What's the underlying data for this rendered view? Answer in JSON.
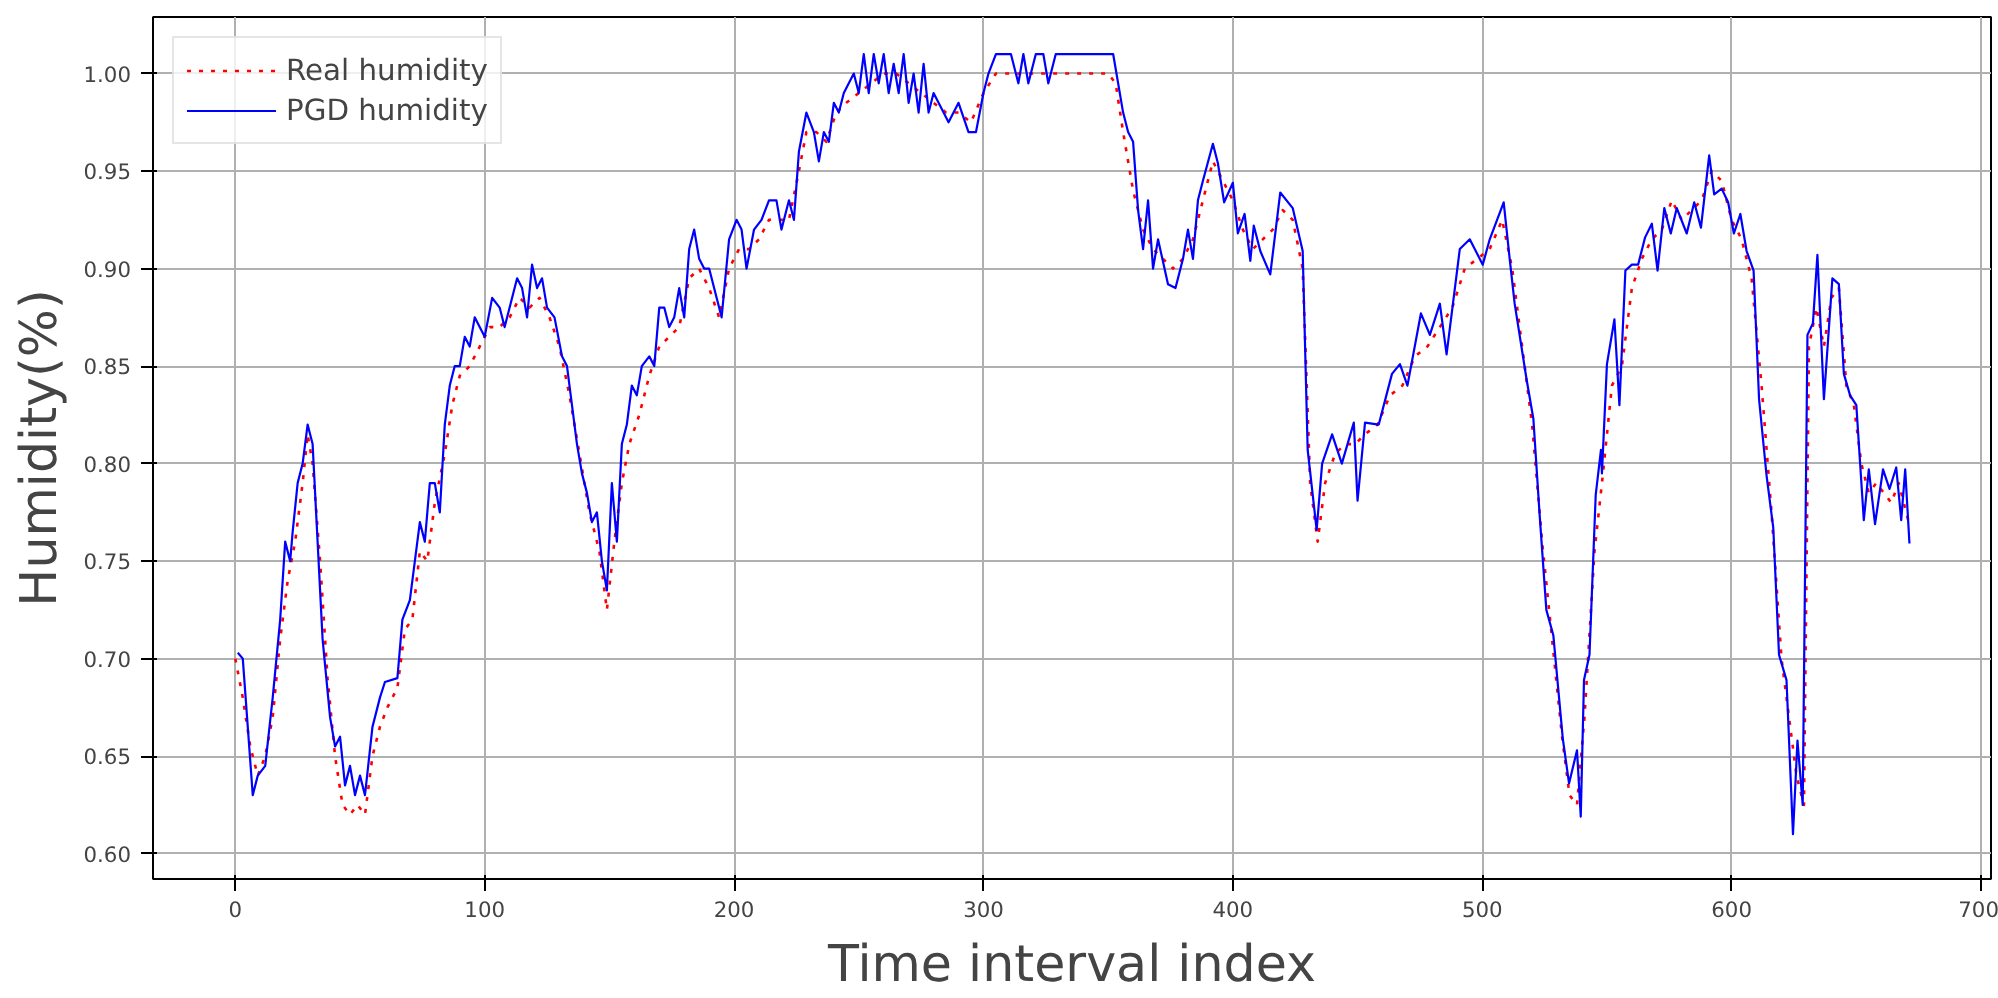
{
  "chart_data": {
    "type": "line",
    "xlabel": "Time interval index",
    "ylabel": "Humidity(%)",
    "xlim": [
      -33,
      704
    ],
    "ylim": [
      0.587,
      1.029
    ],
    "xticks": [
      0,
      100,
      200,
      300,
      400,
      500,
      600,
      700
    ],
    "yticks": [
      {
        "value": 0.6,
        "label": "0.60"
      },
      {
        "value": 0.65,
        "label": "0.65"
      },
      {
        "value": 0.7,
        "label": "0.70"
      },
      {
        "value": 0.75,
        "label": "0.75"
      },
      {
        "value": 0.8,
        "label": "0.80"
      },
      {
        "value": 0.85,
        "label": "0.85"
      },
      {
        "value": 0.9,
        "label": "0.90"
      },
      {
        "value": 0.95,
        "label": "0.95"
      },
      {
        "value": 1.0,
        "label": "1.00"
      }
    ],
    "grid": true,
    "legend": "top left",
    "series": [
      {
        "name": "Real humidity",
        "color": "#ff0000",
        "line_style": "dotted",
        "x": [
          0,
          3,
          6,
          9,
          12,
          15,
          18,
          21,
          24,
          27,
          29,
          31,
          34,
          37,
          40,
          43,
          46,
          49,
          52,
          55,
          58,
          61,
          65,
          68,
          71,
          74,
          77,
          80,
          84,
          87,
          90,
          94,
          98,
          102,
          106,
          110,
          114,
          118,
          122,
          126,
          130,
          134,
          138,
          142,
          146,
          149,
          152,
          155,
          158,
          162,
          166,
          170,
          174,
          178,
          182,
          186,
          190,
          194,
          198,
          202,
          206,
          210,
          214,
          218,
          222,
          226,
          229,
          233,
          237,
          241,
          245,
          250,
          255,
          260,
          265,
          270,
          275,
          280,
          285,
          290,
          295,
          300,
          305,
          310,
          320,
          330,
          340,
          350,
          353,
          356,
          360,
          364,
          368,
          372,
          376,
          380,
          384,
          388,
          392,
          396,
          400,
          404,
          408,
          412,
          416,
          420,
          424,
          428,
          431,
          434,
          437,
          441,
          445,
          449,
          453,
          458,
          463,
          468,
          473,
          478,
          483,
          488,
          493,
          498,
          503,
          508,
          512,
          516,
          520,
          524,
          528,
          532,
          535,
          538,
          541,
          545,
          548,
          552,
          556,
          560,
          564,
          568,
          572,
          576,
          580,
          584,
          588,
          592,
          596,
          600,
          604,
          608,
          612,
          616,
          620,
          623,
          626,
          629,
          631,
          634,
          637,
          640,
          643,
          646,
          649,
          652,
          655,
          658,
          661,
          664,
          667,
          671
        ],
        "values": [
          0.7,
          0.68,
          0.655,
          0.64,
          0.65,
          0.67,
          0.71,
          0.74,
          0.76,
          0.79,
          0.815,
          0.8,
          0.75,
          0.69,
          0.65,
          0.625,
          0.62,
          0.625,
          0.62,
          0.65,
          0.665,
          0.675,
          0.685,
          0.715,
          0.72,
          0.755,
          0.75,
          0.78,
          0.805,
          0.83,
          0.845,
          0.85,
          0.86,
          0.87,
          0.87,
          0.875,
          0.885,
          0.88,
          0.885,
          0.875,
          0.86,
          0.835,
          0.805,
          0.775,
          0.755,
          0.725,
          0.76,
          0.79,
          0.81,
          0.825,
          0.845,
          0.86,
          0.865,
          0.87,
          0.895,
          0.9,
          0.89,
          0.875,
          0.9,
          0.91,
          0.91,
          0.915,
          0.925,
          0.925,
          0.925,
          0.95,
          0.97,
          0.97,
          0.965,
          0.98,
          0.985,
          0.99,
          0.995,
          1.0,
          1.0,
          0.995,
          0.99,
          0.985,
          0.98,
          0.98,
          0.975,
          0.99,
          1.0,
          1.0,
          1.0,
          1.0,
          1.0,
          1.0,
          0.995,
          0.97,
          0.94,
          0.92,
          0.91,
          0.905,
          0.9,
          0.905,
          0.915,
          0.935,
          0.955,
          0.945,
          0.935,
          0.92,
          0.91,
          0.915,
          0.92,
          0.93,
          0.925,
          0.9,
          0.79,
          0.76,
          0.79,
          0.805,
          0.81,
          0.81,
          0.815,
          0.82,
          0.835,
          0.84,
          0.855,
          0.86,
          0.87,
          0.88,
          0.9,
          0.905,
          0.91,
          0.925,
          0.9,
          0.86,
          0.82,
          0.76,
          0.71,
          0.66,
          0.63,
          0.625,
          0.67,
          0.755,
          0.79,
          0.84,
          0.85,
          0.89,
          0.905,
          0.915,
          0.92,
          0.935,
          0.925,
          0.93,
          0.935,
          0.95,
          0.945,
          0.925,
          0.915,
          0.895,
          0.84,
          0.775,
          0.7,
          0.67,
          0.64,
          0.625,
          0.86,
          0.88,
          0.86,
          0.885,
          0.89,
          0.84,
          0.83,
          0.8,
          0.785,
          0.79,
          0.785,
          0.78,
          0.79,
          0.77
        ]
      },
      {
        "name": "PGD humidity",
        "color": "#0000ff",
        "line_style": "solid",
        "x": [
          1,
          3,
          5,
          7,
          9,
          12,
          15,
          18,
          20,
          22,
          23,
          25,
          27,
          29,
          31,
          33,
          35,
          38,
          40,
          42,
          44,
          46,
          48,
          50,
          52,
          55,
          58,
          60,
          65,
          67,
          70,
          72,
          74,
          76,
          78,
          80,
          82,
          84,
          86,
          88,
          90,
          92,
          94,
          96,
          98,
          100,
          103,
          106,
          108,
          110,
          113,
          115,
          117,
          119,
          121,
          123,
          125,
          128,
          131,
          133,
          135,
          137,
          139,
          141,
          143,
          145,
          147,
          149,
          151,
          153,
          155,
          157,
          159,
          161,
          163,
          166,
          168,
          170,
          172,
          174,
          176,
          178,
          180,
          182,
          184,
          186,
          188,
          190,
          193,
          195,
          198,
          201,
          203,
          205,
          208,
          211,
          214,
          217,
          219,
          222,
          224,
          226,
          229,
          232,
          234,
          236,
          238,
          240,
          242,
          244,
          246,
          248,
          250,
          252,
          254,
          256,
          258,
          260,
          262,
          264,
          266,
          268,
          270,
          272,
          274,
          276,
          278,
          280,
          286,
          290,
          294,
          297,
          300,
          302,
          305,
          308,
          311,
          314,
          316,
          318,
          321,
          324,
          326,
          329,
          340,
          352,
          356,
          358,
          360,
          362,
          364,
          366,
          368,
          370,
          374,
          377,
          380,
          382,
          384,
          386,
          388,
          392,
          394,
          396.5,
          400,
          402,
          404.7,
          407,
          408.4,
          411,
          415,
          419,
          424,
          428,
          430,
          433.6,
          435.8,
          439.8,
          443.7,
          448.5,
          450,
          453,
          458.5,
          463.8,
          467,
          470,
          475.4,
          479,
          483,
          485.7,
          491,
          495,
          500.2,
          503,
          508.6,
          511,
          513,
          517.8,
          520.5,
          523,
          525.7,
          528.5,
          532.3,
          534.8,
          538,
          539.5,
          540.8,
          543,
          545.5,
          547.6,
          548,
          550,
          553,
          555,
          557.4,
          560,
          562.5,
          565.3,
          568,
          570.3,
          573,
          575.6,
          578,
          582,
          585,
          587.7,
          591,
          593,
          596,
          598.6,
          600.9,
          603.5,
          606,
          608.8,
          611,
          614,
          616.7,
          619,
          622,
          624.6,
          626.4,
          628.5,
          630.4,
          632.6,
          634.4,
          637,
          640.4,
          643,
          645,
          647.5,
          650,
          653,
          655,
          657.5,
          660.7,
          663.3,
          666,
          668,
          669.6,
          671.3
        ],
        "values": [
          0.703,
          0.7,
          0.665,
          0.63,
          0.64,
          0.645,
          0.68,
          0.72,
          0.76,
          0.75,
          0.765,
          0.79,
          0.8,
          0.82,
          0.81,
          0.76,
          0.71,
          0.67,
          0.655,
          0.66,
          0.635,
          0.645,
          0.63,
          0.64,
          0.63,
          0.665,
          0.68,
          0.688,
          0.69,
          0.72,
          0.73,
          0.75,
          0.77,
          0.76,
          0.79,
          0.79,
          0.775,
          0.82,
          0.84,
          0.85,
          0.85,
          0.865,
          0.86,
          0.875,
          0.87,
          0.865,
          0.885,
          0.88,
          0.87,
          0.88,
          0.895,
          0.89,
          0.875,
          0.902,
          0.89,
          0.895,
          0.88,
          0.875,
          0.855,
          0.85,
          0.83,
          0.81,
          0.795,
          0.785,
          0.77,
          0.775,
          0.75,
          0.735,
          0.79,
          0.76,
          0.81,
          0.82,
          0.84,
          0.835,
          0.85,
          0.855,
          0.85,
          0.88,
          0.88,
          0.87,
          0.875,
          0.89,
          0.875,
          0.91,
          0.92,
          0.905,
          0.9,
          0.9,
          0.885,
          0.875,
          0.915,
          0.925,
          0.92,
          0.9,
          0.92,
          0.925,
          0.935,
          0.935,
          0.92,
          0.935,
          0.925,
          0.96,
          0.98,
          0.97,
          0.955,
          0.97,
          0.965,
          0.985,
          0.98,
          0.99,
          0.995,
          1.0,
          0.99,
          1.01,
          0.99,
          1.01,
          0.995,
          1.01,
          0.99,
          1.005,
          0.99,
          1.01,
          0.985,
          1.0,
          0.98,
          1.005,
          0.98,
          0.99,
          0.975,
          0.985,
          0.97,
          0.97,
          0.99,
          1.0,
          1.01,
          1.01,
          1.01,
          0.995,
          1.01,
          0.995,
          1.01,
          1.01,
          0.995,
          1.01,
          1.01,
          1.01,
          0.98,
          0.97,
          0.965,
          0.93,
          0.91,
          0.935,
          0.9,
          0.915,
          0.892,
          0.89,
          0.905,
          0.92,
          0.905,
          0.935,
          0.945,
          0.964,
          0.954,
          0.934,
          0.944,
          0.918,
          0.928,
          0.904,
          0.922,
          0.909,
          0.897,
          0.939,
          0.931,
          0.909,
          0.807,
          0.766,
          0.8,
          0.815,
          0.8,
          0.821,
          0.781,
          0.821,
          0.82,
          0.846,
          0.851,
          0.84,
          0.877,
          0.866,
          0.882,
          0.856,
          0.91,
          0.915,
          0.902,
          0.915,
          0.934,
          0.905,
          0.882,
          0.843,
          0.823,
          0.774,
          0.725,
          0.712,
          0.659,
          0.636,
          0.653,
          0.619,
          0.689,
          0.702,
          0.784,
          0.807,
          0.795,
          0.851,
          0.874,
          0.83,
          0.899,
          0.902,
          0.902,
          0.916,
          0.923,
          0.899,
          0.931,
          0.918,
          0.931,
          0.918,
          0.934,
          0.921,
          0.958,
          0.938,
          0.941,
          0.934,
          0.918,
          0.928,
          0.909,
          0.899,
          0.833,
          0.794,
          0.767,
          0.702,
          0.689,
          0.61,
          0.658,
          0.625,
          0.866,
          0.872,
          0.907,
          0.833,
          0.895,
          0.892,
          0.846,
          0.835,
          0.83,
          0.771,
          0.797,
          0.769,
          0.797,
          0.787,
          0.798,
          0.771,
          0.797,
          0.759
        ]
      }
    ]
  }
}
